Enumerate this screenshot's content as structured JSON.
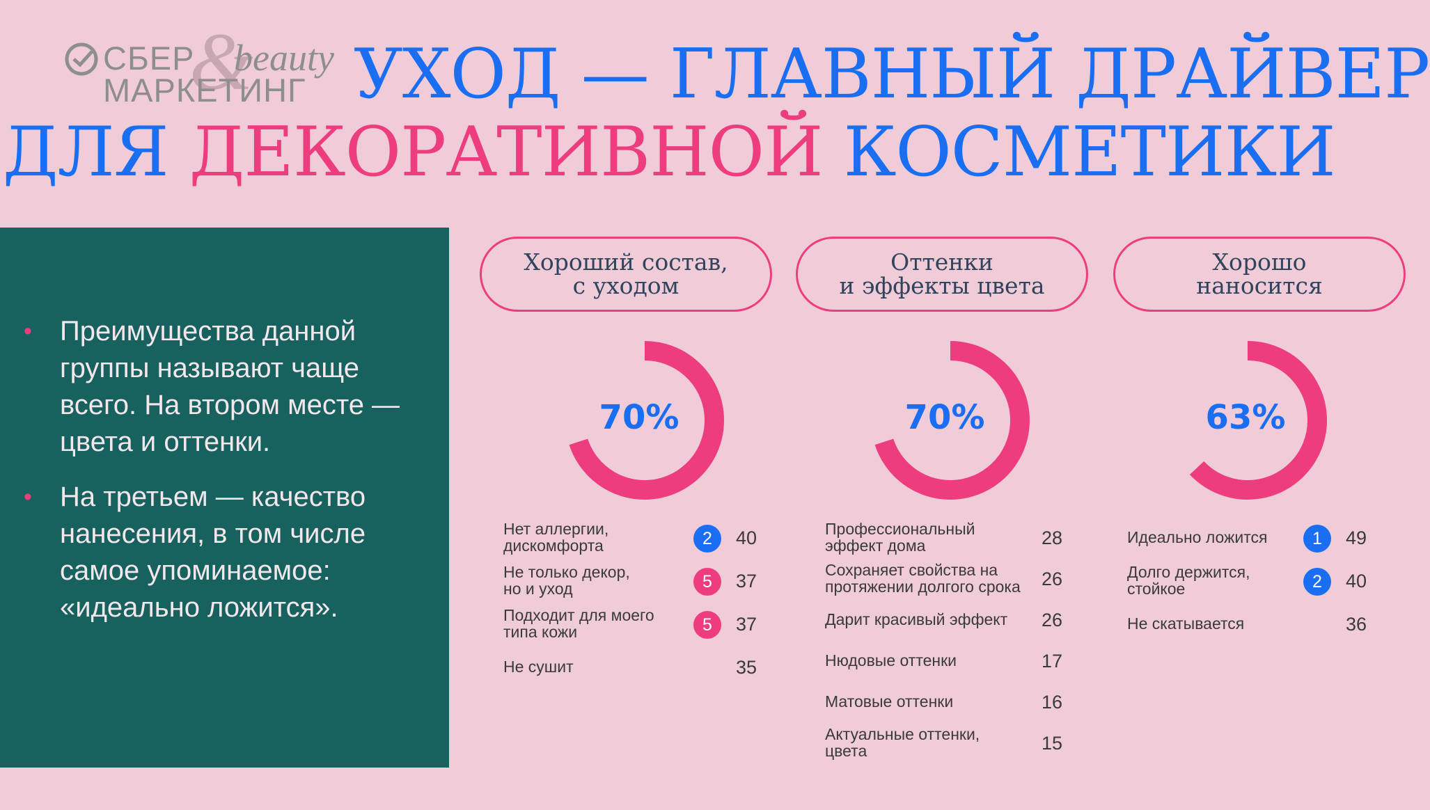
{
  "logo": {
    "line1": "СБЕР",
    "line2": "МАРКЕТИНГ",
    "amp": "&",
    "beauty": "beauty"
  },
  "title": {
    "line1": "УХОД — ГЛАВНЫЙ ДРАЙВЕР",
    "line2_a": "ДЛЯ ",
    "line2_b": "ДЕКОРАТИВНОЙ",
    "line2_c": " КОСМЕТИКИ"
  },
  "bullets": [
    "Преимущества данной группы называют чаще всего. На втором месте — цвета и оттенки.",
    "На третьем — качество нанесения, в том числе самое упоминаемое: «идеально ложится»."
  ],
  "colors": {
    "background": "#f0ccd8",
    "panel": "#17625e",
    "blue": "#1a6ef2",
    "pink": "#ee3d7e"
  },
  "columns": [
    {
      "pill_line1": "Хороший состав,",
      "pill_line2": "с уходом",
      "percent": "70%",
      "fraction": 0.7,
      "items": [
        {
          "label1": "Нет аллергии,",
          "label2": "дискомфорта",
          "rank": "2",
          "rank_color": "blue",
          "value": "40"
        },
        {
          "label1": "Не только декор,",
          "label2": "но и уход",
          "rank": "5",
          "rank_color": "pink",
          "value": "37"
        },
        {
          "label1": "Подходит для моего",
          "label2": "типа кожи",
          "rank": "5",
          "rank_color": "pink",
          "value": "37"
        },
        {
          "label1": "Не сушит",
          "label2": "",
          "rank": "",
          "rank_color": "",
          "value": "35"
        }
      ]
    },
    {
      "pill_line1": "Оттенки",
      "pill_line2": "и эффекты цвета",
      "percent": "70%",
      "fraction": 0.7,
      "items": [
        {
          "label1": "Профессиональный",
          "label2": "эффект дома",
          "rank": "",
          "rank_color": "",
          "value": "28"
        },
        {
          "label1": "Сохраняет свойства  на",
          "label2": "протяжении долгого срока",
          "rank": "",
          "rank_color": "",
          "value": "26"
        },
        {
          "label1": "Дарит красивый эффект",
          "label2": "",
          "rank": "",
          "rank_color": "",
          "value": "26"
        },
        {
          "label1": "Нюдовые оттенки",
          "label2": "",
          "rank": "",
          "rank_color": "",
          "value": "17"
        },
        {
          "label1": "Матовые оттенки",
          "label2": "",
          "rank": "",
          "rank_color": "",
          "value": "16"
        },
        {
          "label1": "Актуальные оттенки,",
          "label2": "цвета",
          "rank": "",
          "rank_color": "",
          "value": "15"
        }
      ]
    },
    {
      "pill_line1": "Хорошо",
      "pill_line2": "наносится",
      "percent": "63%",
      "fraction": 0.63,
      "items": [
        {
          "label1": "Идеально ложится",
          "label2": "",
          "rank": "1",
          "rank_color": "blue",
          "value": "49"
        },
        {
          "label1": "Долго держится,",
          "label2": "стойкое",
          "rank": "2",
          "rank_color": "blue",
          "value": "40"
        },
        {
          "label1": "Не скатывается",
          "label2": "",
          "rank": "",
          "rank_color": "",
          "value": "36"
        }
      ]
    }
  ]
}
